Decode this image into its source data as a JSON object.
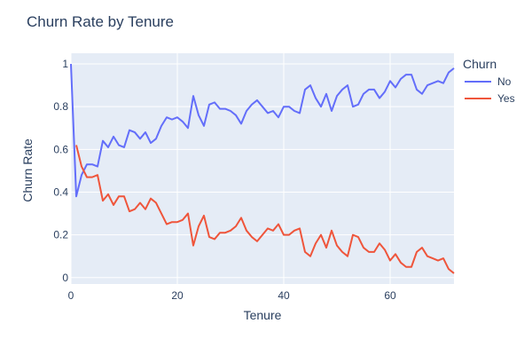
{
  "chart_data": {
    "type": "line",
    "title": "Churn Rate by Tenure",
    "xlabel": "Tenure",
    "ylabel": "Churn Rate",
    "xlim": [
      0,
      72
    ],
    "ylim": [
      -0.03,
      1.05
    ],
    "x_ticks": [
      0,
      20,
      40,
      60
    ],
    "y_ticks": [
      0,
      0.2,
      0.4,
      0.6,
      0.8,
      1
    ],
    "y_tick_labels": [
      "0",
      "0.2",
      "0.4",
      "0.6",
      "0.8",
      "1"
    ],
    "grid": true,
    "plot_background": "#e5ecf6",
    "legend": {
      "title": "Churn",
      "position": "right"
    },
    "series": [
      {
        "name": "No",
        "color": "#636efa",
        "x": [
          0,
          1,
          2,
          3,
          4,
          5,
          6,
          7,
          8,
          9,
          10,
          11,
          12,
          13,
          14,
          15,
          16,
          17,
          18,
          19,
          20,
          21,
          22,
          23,
          24,
          25,
          26,
          27,
          28,
          29,
          30,
          31,
          32,
          33,
          34,
          35,
          36,
          37,
          38,
          39,
          40,
          41,
          42,
          43,
          44,
          45,
          46,
          47,
          48,
          49,
          50,
          51,
          52,
          53,
          54,
          55,
          56,
          57,
          58,
          59,
          60,
          61,
          62,
          63,
          64,
          65,
          66,
          67,
          68,
          69,
          70,
          71,
          72
        ],
        "values": [
          1.0,
          0.38,
          0.48,
          0.53,
          0.53,
          0.52,
          0.64,
          0.61,
          0.66,
          0.62,
          0.61,
          0.69,
          0.68,
          0.65,
          0.68,
          0.63,
          0.65,
          0.71,
          0.75,
          0.74,
          0.75,
          0.73,
          0.7,
          0.85,
          0.76,
          0.71,
          0.81,
          0.82,
          0.79,
          0.79,
          0.78,
          0.76,
          0.72,
          0.78,
          0.81,
          0.83,
          0.8,
          0.77,
          0.78,
          0.75,
          0.8,
          0.8,
          0.78,
          0.77,
          0.88,
          0.9,
          0.84,
          0.8,
          0.86,
          0.78,
          0.85,
          0.88,
          0.9,
          0.8,
          0.81,
          0.86,
          0.88,
          0.88,
          0.84,
          0.87,
          0.92,
          0.89,
          0.93,
          0.95,
          0.95,
          0.88,
          0.86,
          0.9,
          0.91,
          0.92,
          0.91,
          0.96,
          0.98
        ]
      },
      {
        "name": "Yes",
        "color": "#ef553b",
        "x": [
          1,
          2,
          3,
          4,
          5,
          6,
          7,
          8,
          9,
          10,
          11,
          12,
          13,
          14,
          15,
          16,
          17,
          18,
          19,
          20,
          21,
          22,
          23,
          24,
          25,
          26,
          27,
          28,
          29,
          30,
          31,
          32,
          33,
          34,
          35,
          36,
          37,
          38,
          39,
          40,
          41,
          42,
          43,
          44,
          45,
          46,
          47,
          48,
          49,
          50,
          51,
          52,
          53,
          54,
          55,
          56,
          57,
          58,
          59,
          60,
          61,
          62,
          63,
          64,
          65,
          66,
          67,
          68,
          69,
          70,
          71,
          72
        ],
        "values": [
          0.62,
          0.52,
          0.47,
          0.47,
          0.48,
          0.36,
          0.39,
          0.34,
          0.38,
          0.38,
          0.31,
          0.32,
          0.35,
          0.32,
          0.37,
          0.35,
          0.3,
          0.25,
          0.26,
          0.26,
          0.27,
          0.3,
          0.15,
          0.24,
          0.29,
          0.19,
          0.18,
          0.21,
          0.21,
          0.22,
          0.24,
          0.28,
          0.22,
          0.19,
          0.17,
          0.2,
          0.23,
          0.22,
          0.25,
          0.2,
          0.2,
          0.22,
          0.23,
          0.12,
          0.1,
          0.16,
          0.2,
          0.14,
          0.22,
          0.15,
          0.12,
          0.1,
          0.2,
          0.19,
          0.14,
          0.12,
          0.12,
          0.16,
          0.13,
          0.08,
          0.11,
          0.07,
          0.05,
          0.05,
          0.12,
          0.14,
          0.1,
          0.09,
          0.08,
          0.09,
          0.04,
          0.02
        ]
      }
    ]
  }
}
